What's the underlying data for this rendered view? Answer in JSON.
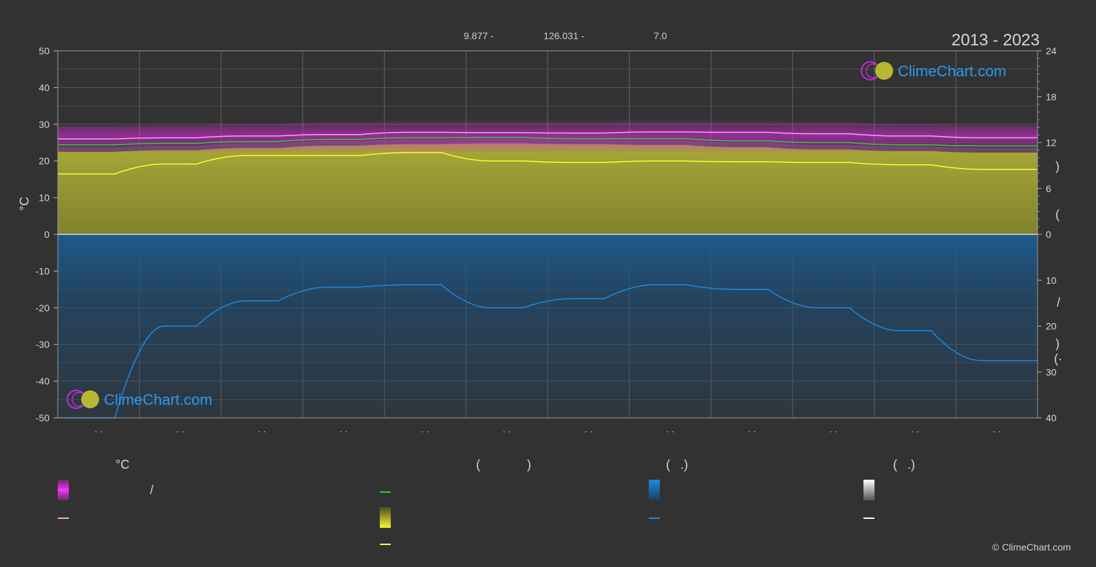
{
  "header": {
    "latitude": "9.877 -",
    "longitude": "126.031 -",
    "elevation": "7.0",
    "period": "2013 - 2023"
  },
  "branding": {
    "logo_text": "ClimeChart.com",
    "copyright": "© ClimeChart.com"
  },
  "axes": {
    "left_unit": "°C",
    "right_upper_mark": ")",
    "right_upper_mark2": "(",
    "right_lower_mark": "/",
    "right_lower_mark2": ")",
    "right_lower_mark3": "(·"
  },
  "legend": {
    "col1_head": "°C",
    "col1_slash": "/",
    "col2_head_open": "(",
    "col2_head_close": ")",
    "col3_head": "(   .)",
    "col4_head": "(   .)"
  },
  "colors": {
    "background": "#323232",
    "temp_band": "#d62ad6",
    "max_temp_line": "#ff9bff",
    "mean_temp_line": "#2fd12f",
    "sunshine_band": "#a7a72a",
    "daylight_line": "#ffff33",
    "precip_band": "#1b5c92",
    "precip_line": "#1e8ae0",
    "snow_line": "#ffffff"
  },
  "chart_data": {
    "type": "line",
    "x_tick_labels": [
      "· ·",
      "· ·",
      "· ·",
      "· ·",
      "· ·",
      "· ·",
      "· ·",
      "· ·",
      "· ·",
      "· ·",
      "· ·",
      "· ·"
    ],
    "left_axis": {
      "label": "°C",
      "ylim": [
        -50,
        50
      ],
      "ticks": [
        50,
        40,
        30,
        20,
        10,
        0,
        -10,
        -20,
        -30,
        -40,
        -50
      ]
    },
    "right_upper_axis": {
      "ylim": [
        0,
        24
      ],
      "ticks": [
        24,
        18,
        12,
        6,
        0
      ]
    },
    "right_lower_axis": {
      "ylim": [
        0,
        40
      ],
      "ticks": [
        0,
        10,
        20,
        30,
        40
      ]
    },
    "grid": true,
    "series": [
      {
        "key": "max_temp",
        "axis": "left",
        "values": [
          26.0,
          26.3,
          26.8,
          27.2,
          27.8,
          27.7,
          27.6,
          27.9,
          27.8,
          27.4,
          26.8,
          26.3
        ]
      },
      {
        "key": "mean_temp",
        "axis": "left",
        "values": [
          24.4,
          24.8,
          25.3,
          25.9,
          26.3,
          26.4,
          26.1,
          26.1,
          25.5,
          25.0,
          24.4,
          24.1
        ]
      },
      {
        "key": "temp_band_low",
        "axis": "left",
        "values": [
          22.5,
          22.6,
          23.0,
          23.4,
          24.0,
          24.2,
          24.0,
          24.0,
          23.6,
          23.3,
          22.9,
          22.6
        ]
      },
      {
        "key": "temp_band_high",
        "axis": "left",
        "values": [
          29.5,
          29.6,
          30.0,
          30.5,
          31.0,
          31.0,
          31.0,
          31.2,
          31.0,
          30.6,
          30.0,
          29.6
        ]
      },
      {
        "key": "sunshine_hours",
        "axis": "right_upper",
        "values": [
          7.9,
          9.2,
          10.3,
          10.3,
          10.7,
          9.6,
          9.4,
          9.6,
          9.5,
          9.4,
          9.1,
          8.5
        ]
      },
      {
        "key": "daylight_fill",
        "axis": "right_upper",
        "values": [
          11.4,
          11.6,
          11.9,
          12.2,
          12.4,
          12.5,
          12.4,
          12.3,
          12.0,
          11.7,
          11.5,
          11.3
        ]
      },
      {
        "key": "precipitation_mm_per_day",
        "axis": "right_lower",
        "values": [
          40.0,
          20.0,
          14.5,
          11.5,
          11.0,
          16.0,
          14.0,
          11.0,
          12.0,
          16.0,
          21.0,
          27.5
        ]
      }
    ]
  }
}
